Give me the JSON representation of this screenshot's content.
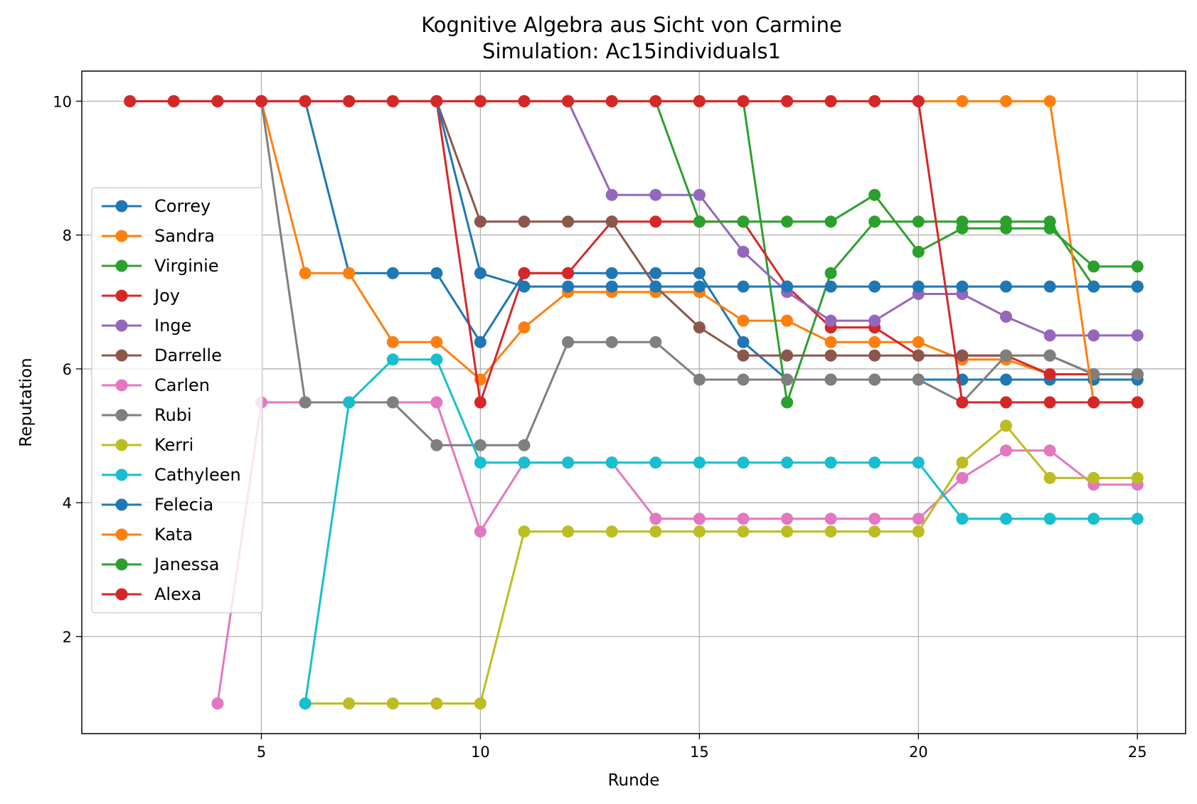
{
  "chart_data": {
    "type": "line",
    "title": "Kognitive Algebra aus Sicht von Carmine",
    "subtitle": "Simulation: Ac15individuals1",
    "xlabel": "Runde",
    "ylabel": "Reputation",
    "xlim": [
      0.9,
      26.1
    ],
    "ylim": [
      0.55,
      10.45
    ],
    "xticks": [
      5,
      10,
      15,
      20,
      25
    ],
    "yticks": [
      2,
      4,
      6,
      8,
      10
    ],
    "grid": true,
    "legend_position": "center-left",
    "series": [
      {
        "name": "Correy",
        "color": "#1f77b4",
        "points": [
          [
            2,
            10
          ],
          [
            3,
            10
          ],
          [
            4,
            10
          ],
          [
            5,
            10
          ],
          [
            6,
            10
          ],
          [
            7,
            7.43
          ],
          [
            8,
            7.43
          ],
          [
            9,
            7.43
          ],
          [
            10,
            6.4
          ],
          [
            11,
            7.43
          ],
          [
            12,
            7.43
          ],
          [
            13,
            7.43
          ],
          [
            14,
            7.43
          ],
          [
            15,
            7.43
          ],
          [
            16,
            6.4
          ],
          [
            17,
            5.84
          ],
          [
            18,
            5.84
          ],
          [
            19,
            5.84
          ],
          [
            20,
            5.84
          ],
          [
            21,
            5.84
          ],
          [
            22,
            5.84
          ],
          [
            23,
            5.84
          ],
          [
            24,
            5.84
          ],
          [
            25,
            5.84
          ]
        ]
      },
      {
        "name": "Sandra",
        "color": "#ff7f0e",
        "points": [
          [
            5,
            10
          ],
          [
            6,
            7.43
          ],
          [
            7,
            7.43
          ],
          [
            8,
            6.4
          ],
          [
            9,
            6.4
          ],
          [
            10,
            5.84
          ],
          [
            11,
            6.62
          ],
          [
            12,
            7.15
          ],
          [
            13,
            7.15
          ],
          [
            14,
            7.15
          ],
          [
            15,
            7.15
          ],
          [
            16,
            6.72
          ],
          [
            17,
            6.72
          ],
          [
            18,
            6.4
          ],
          [
            19,
            6.4
          ],
          [
            20,
            6.4
          ],
          [
            21,
            6.14
          ],
          [
            22,
            6.14
          ],
          [
            23,
            5.92
          ],
          [
            24,
            5.92
          ],
          [
            25,
            5.92
          ]
        ]
      },
      {
        "name": "Virginie",
        "color": "#2ca02c",
        "points": [
          [
            11,
            10
          ],
          [
            12,
            10
          ],
          [
            13,
            10
          ],
          [
            14,
            10
          ],
          [
            15,
            10
          ],
          [
            16,
            10
          ],
          [
            17,
            5.5
          ],
          [
            18,
            7.43
          ],
          [
            19,
            8.2
          ],
          [
            20,
            8.2
          ],
          [
            21,
            8.2
          ],
          [
            22,
            8.2
          ],
          [
            23,
            8.2
          ],
          [
            24,
            7.23
          ],
          [
            25,
            7.23
          ]
        ]
      },
      {
        "name": "Joy",
        "color": "#d62728",
        "points": [
          [
            9,
            10
          ],
          [
            10,
            5.5
          ],
          [
            11,
            7.43
          ],
          [
            12,
            7.43
          ],
          [
            13,
            8.2
          ],
          [
            14,
            8.2
          ],
          [
            15,
            8.2
          ],
          [
            16,
            8.2
          ],
          [
            17,
            7.23
          ],
          [
            18,
            6.62
          ],
          [
            19,
            6.62
          ],
          [
            20,
            6.2
          ],
          [
            21,
            6.2
          ],
          [
            22,
            6.2
          ],
          [
            23,
            5.92
          ],
          [
            24,
            5.92
          ],
          [
            25,
            5.92
          ]
        ]
      },
      {
        "name": "Inge",
        "color": "#9467bd",
        "points": [
          [
            3,
            10
          ],
          [
            4,
            10
          ],
          [
            5,
            10
          ],
          [
            6,
            10
          ],
          [
            7,
            10
          ],
          [
            8,
            10
          ],
          [
            9,
            10
          ],
          [
            10,
            10
          ],
          [
            11,
            10
          ],
          [
            12,
            10
          ],
          [
            13,
            8.6
          ],
          [
            14,
            8.6
          ],
          [
            15,
            8.6
          ],
          [
            16,
            7.75
          ],
          [
            17,
            7.15
          ],
          [
            18,
            6.72
          ],
          [
            19,
            6.72
          ],
          [
            20,
            7.12
          ],
          [
            21,
            7.12
          ],
          [
            22,
            6.78
          ],
          [
            23,
            6.5
          ],
          [
            24,
            6.5
          ],
          [
            25,
            6.5
          ]
        ]
      },
      {
        "name": "Darrelle",
        "color": "#8c564b",
        "points": [
          [
            4,
            10
          ],
          [
            5,
            10
          ],
          [
            6,
            10
          ],
          [
            7,
            10
          ],
          [
            8,
            10
          ],
          [
            9,
            10
          ],
          [
            10,
            8.2
          ],
          [
            11,
            8.2
          ],
          [
            12,
            8.2
          ],
          [
            13,
            8.2
          ],
          [
            14,
            7.23
          ],
          [
            15,
            6.62
          ],
          [
            16,
            6.2
          ],
          [
            17,
            6.2
          ],
          [
            18,
            6.2
          ],
          [
            19,
            6.2
          ],
          [
            20,
            6.2
          ],
          [
            21,
            6.2
          ],
          [
            22,
            6.2
          ],
          [
            23,
            6.2
          ],
          [
            24,
            5.92
          ],
          [
            25,
            5.92
          ]
        ]
      },
      {
        "name": "Carlen",
        "color": "#e377c2",
        "points": [
          [
            4,
            1
          ],
          [
            5,
            5.5
          ],
          [
            6,
            5.5
          ],
          [
            7,
            5.5
          ],
          [
            8,
            5.5
          ],
          [
            9,
            5.5
          ],
          [
            10,
            3.57
          ],
          [
            11,
            4.6
          ],
          [
            12,
            4.6
          ],
          [
            13,
            4.6
          ],
          [
            14,
            3.76
          ],
          [
            15,
            3.76
          ],
          [
            16,
            3.76
          ],
          [
            17,
            3.76
          ],
          [
            18,
            3.76
          ],
          [
            19,
            3.76
          ],
          [
            20,
            3.76
          ],
          [
            21,
            4.37
          ],
          [
            22,
            4.78
          ],
          [
            23,
            4.78
          ],
          [
            24,
            4.27
          ],
          [
            25,
            4.27
          ]
        ]
      },
      {
        "name": "Rubi",
        "color": "#7f7f7f",
        "points": [
          [
            5,
            10
          ],
          [
            6,
            5.5
          ],
          [
            7,
            5.5
          ],
          [
            8,
            5.5
          ],
          [
            9,
            4.86
          ],
          [
            10,
            4.86
          ],
          [
            11,
            4.86
          ],
          [
            12,
            6.4
          ],
          [
            13,
            6.4
          ],
          [
            14,
            6.4
          ],
          [
            15,
            5.84
          ],
          [
            16,
            5.84
          ],
          [
            17,
            5.84
          ],
          [
            18,
            5.84
          ],
          [
            19,
            5.84
          ],
          [
            20,
            5.84
          ],
          [
            21,
            5.5
          ],
          [
            22,
            6.2
          ],
          [
            23,
            6.2
          ],
          [
            24,
            5.92
          ],
          [
            25,
            5.92
          ]
        ]
      },
      {
        "name": "Kerri",
        "color": "#bcbd22",
        "points": [
          [
            6,
            1
          ],
          [
            7,
            1
          ],
          [
            8,
            1
          ],
          [
            9,
            1
          ],
          [
            10,
            1
          ],
          [
            11,
            3.57
          ],
          [
            12,
            3.57
          ],
          [
            13,
            3.57
          ],
          [
            14,
            3.57
          ],
          [
            15,
            3.57
          ],
          [
            16,
            3.57
          ],
          [
            17,
            3.57
          ],
          [
            18,
            3.57
          ],
          [
            19,
            3.57
          ],
          [
            20,
            3.57
          ],
          [
            21,
            4.6
          ],
          [
            22,
            5.15
          ],
          [
            23,
            4.37
          ],
          [
            24,
            4.37
          ],
          [
            25,
            4.37
          ]
        ]
      },
      {
        "name": "Cathyleen",
        "color": "#17becf",
        "points": [
          [
            6,
            1
          ],
          [
            7,
            5.5
          ],
          [
            8,
            6.14
          ],
          [
            9,
            6.14
          ],
          [
            10,
            4.6
          ],
          [
            11,
            4.6
          ],
          [
            12,
            4.6
          ],
          [
            13,
            4.6
          ],
          [
            14,
            4.6
          ],
          [
            15,
            4.6
          ],
          [
            16,
            4.6
          ],
          [
            17,
            4.6
          ],
          [
            18,
            4.6
          ],
          [
            19,
            4.6
          ],
          [
            20,
            4.6
          ],
          [
            21,
            3.76
          ],
          [
            22,
            3.76
          ],
          [
            23,
            3.76
          ],
          [
            24,
            3.76
          ],
          [
            25,
            3.76
          ]
        ]
      },
      {
        "name": "Felecia",
        "color": "#1f77b4",
        "points": [
          [
            9,
            10
          ],
          [
            10,
            7.43
          ],
          [
            11,
            7.23
          ],
          [
            12,
            7.23
          ],
          [
            13,
            7.23
          ],
          [
            14,
            7.23
          ],
          [
            15,
            7.23
          ],
          [
            16,
            7.23
          ],
          [
            17,
            7.23
          ],
          [
            18,
            7.23
          ],
          [
            19,
            7.23
          ],
          [
            20,
            7.23
          ],
          [
            21,
            7.23
          ],
          [
            22,
            7.23
          ],
          [
            23,
            7.23
          ],
          [
            24,
            7.23
          ],
          [
            25,
            7.23
          ]
        ]
      },
      {
        "name": "Kata",
        "color": "#ff7f0e",
        "points": [
          [
            7,
            10
          ],
          [
            8,
            10
          ],
          [
            9,
            10
          ],
          [
            10,
            10
          ],
          [
            11,
            10
          ],
          [
            12,
            10
          ],
          [
            13,
            10
          ],
          [
            14,
            10
          ],
          [
            15,
            10
          ],
          [
            16,
            10
          ],
          [
            17,
            10
          ],
          [
            18,
            10
          ],
          [
            19,
            10
          ],
          [
            20,
            10
          ],
          [
            21,
            10
          ],
          [
            22,
            10
          ],
          [
            23,
            10
          ],
          [
            24,
            5.5
          ],
          [
            25,
            5.5
          ]
        ]
      },
      {
        "name": "Janessa",
        "color": "#2ca02c",
        "points": [
          [
            14,
            10
          ],
          [
            15,
            8.2
          ],
          [
            16,
            8.2
          ],
          [
            17,
            8.2
          ],
          [
            18,
            8.2
          ],
          [
            19,
            8.6
          ],
          [
            20,
            7.75
          ],
          [
            21,
            8.1
          ],
          [
            22,
            8.1
          ],
          [
            23,
            8.1
          ],
          [
            24,
            7.53
          ],
          [
            25,
            7.53
          ]
        ]
      },
      {
        "name": "Alexa",
        "color": "#d62728",
        "points": [
          [
            2,
            10
          ],
          [
            3,
            10
          ],
          [
            4,
            10
          ],
          [
            5,
            10
          ],
          [
            6,
            10
          ],
          [
            7,
            10
          ],
          [
            8,
            10
          ],
          [
            9,
            10
          ],
          [
            10,
            10
          ],
          [
            11,
            10
          ],
          [
            12,
            10
          ],
          [
            13,
            10
          ],
          [
            14,
            10
          ],
          [
            15,
            10
          ],
          [
            16,
            10
          ],
          [
            17,
            10
          ],
          [
            18,
            10
          ],
          [
            19,
            10
          ],
          [
            20,
            10
          ],
          [
            21,
            5.5
          ],
          [
            22,
            5.5
          ],
          [
            23,
            5.5
          ],
          [
            24,
            5.5
          ],
          [
            25,
            5.5
          ]
        ]
      }
    ]
  }
}
